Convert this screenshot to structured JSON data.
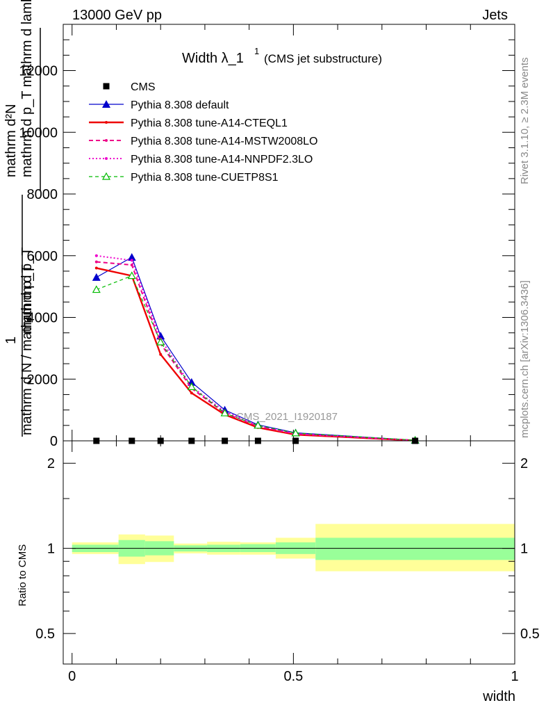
{
  "header": {
    "left": "13000 GeV pp",
    "right": "Jets"
  },
  "side_labels": {
    "rivet": "Rivet 3.1.10, ≥ 2.3M events",
    "mcplots": "mcplots.cern.ch [arXiv:1306.3436]"
  },
  "watermark": "CMS_2021_I1920187",
  "chart_data": [
    {
      "type": "line",
      "title_main": "Width λ_1",
      "title_sup": "1",
      "title_sub": "(CMS jet substructure)",
      "ylabel_numerator": "mathrm d²N",
      "ylabel_numerator_sub": "mathrm d p_T mathrm d lambda",
      "ylabel_den_one": "1",
      "ylabel_denominator": "mathrm d N / mathrm d p_T",
      "ylabel_den_sub": "mathrm d p_T",
      "xlim": [
        -0.02,
        1.0
      ],
      "ylim": [
        0,
        13500
      ],
      "y_ticks": [
        0,
        2000,
        4000,
        6000,
        8000,
        10000,
        12000
      ],
      "y_tick_labels": [
        "0",
        "2000",
        "4000",
        "6000",
        "8000",
        "10000",
        "12000"
      ],
      "legend_position": "top-left",
      "x": [
        0.055,
        0.135,
        0.2,
        0.27,
        0.345,
        0.42,
        0.505,
        0.775
      ],
      "series": [
        {
          "name": "CMS",
          "style": "square",
          "color": "#000000",
          "values": [
            0,
            0,
            0,
            0,
            0,
            0,
            0,
            0
          ]
        },
        {
          "name": "Pythia 8.308 default",
          "style": "solid-triangle",
          "color": "#0000cc",
          "values": [
            5300,
            5950,
            3400,
            1900,
            1000,
            520,
            260,
            20
          ]
        },
        {
          "name": "Pythia 8.308 tune-A14-CTEQL1",
          "style": "solid-thick",
          "color": "#ee0000",
          "values": [
            5600,
            5350,
            2800,
            1550,
            850,
            430,
            200,
            10
          ]
        },
        {
          "name": "Pythia 8.308 tune-A14-MSTW2008LO",
          "style": "dashed",
          "color": "#ee0088",
          "values": [
            5800,
            5700,
            3150,
            1700,
            900,
            470,
            220,
            15
          ]
        },
        {
          "name": "Pythia 8.308 tune-A14-NNPDF2.3LO",
          "style": "dotted",
          "color": "#ee00cc",
          "values": [
            6000,
            5850,
            3300,
            1750,
            950,
            490,
            230,
            15
          ]
        },
        {
          "name": "Pythia 8.308 tune-CUETP8S1",
          "style": "dashed-open-triangle",
          "color": "#00bb00",
          "values": [
            4900,
            5350,
            3200,
            1750,
            900,
            500,
            250,
            20
          ]
        }
      ]
    },
    {
      "type": "area",
      "ylabel": "Ratio to CMS",
      "xlabel": "width",
      "xlim": [
        -0.02,
        1.0
      ],
      "ylim": [
        0.39,
        2.4
      ],
      "log_y": true,
      "y_ticks": [
        0.5,
        1,
        2
      ],
      "y_tick_labels": [
        "0.5",
        "1",
        "2"
      ],
      "x_ticks": [
        0,
        0.5,
        1
      ],
      "x_tick_labels": [
        "0",
        "0.5",
        "1"
      ],
      "bands": [
        {
          "x0": 0.0,
          "x1": 0.105,
          "inner": [
            0.97,
            1.03
          ],
          "outer": [
            0.955,
            1.05
          ]
        },
        {
          "x0": 0.105,
          "x1": 0.165,
          "inner": [
            0.935,
            1.07
          ],
          "outer": [
            0.88,
            1.12
          ]
        },
        {
          "x0": 0.165,
          "x1": 0.23,
          "inner": [
            0.945,
            1.06
          ],
          "outer": [
            0.895,
            1.11
          ]
        },
        {
          "x0": 0.23,
          "x1": 0.305,
          "inner": [
            0.975,
            1.025
          ],
          "outer": [
            0.96,
            1.04
          ]
        },
        {
          "x0": 0.305,
          "x1": 0.38,
          "inner": [
            0.97,
            1.03
          ],
          "outer": [
            0.95,
            1.055
          ]
        },
        {
          "x0": 0.38,
          "x1": 0.46,
          "inner": [
            0.97,
            1.035
          ],
          "outer": [
            0.95,
            1.05
          ]
        },
        {
          "x0": 0.46,
          "x1": 0.55,
          "inner": [
            0.955,
            1.05
          ],
          "outer": [
            0.92,
            1.09
          ]
        },
        {
          "x0": 0.55,
          "x1": 1.0,
          "inner": [
            0.91,
            1.09
          ],
          "outer": [
            0.83,
            1.22
          ]
        }
      ],
      "band_colors": {
        "inner": "#99ff99",
        "outer": "#ffff99"
      }
    }
  ]
}
